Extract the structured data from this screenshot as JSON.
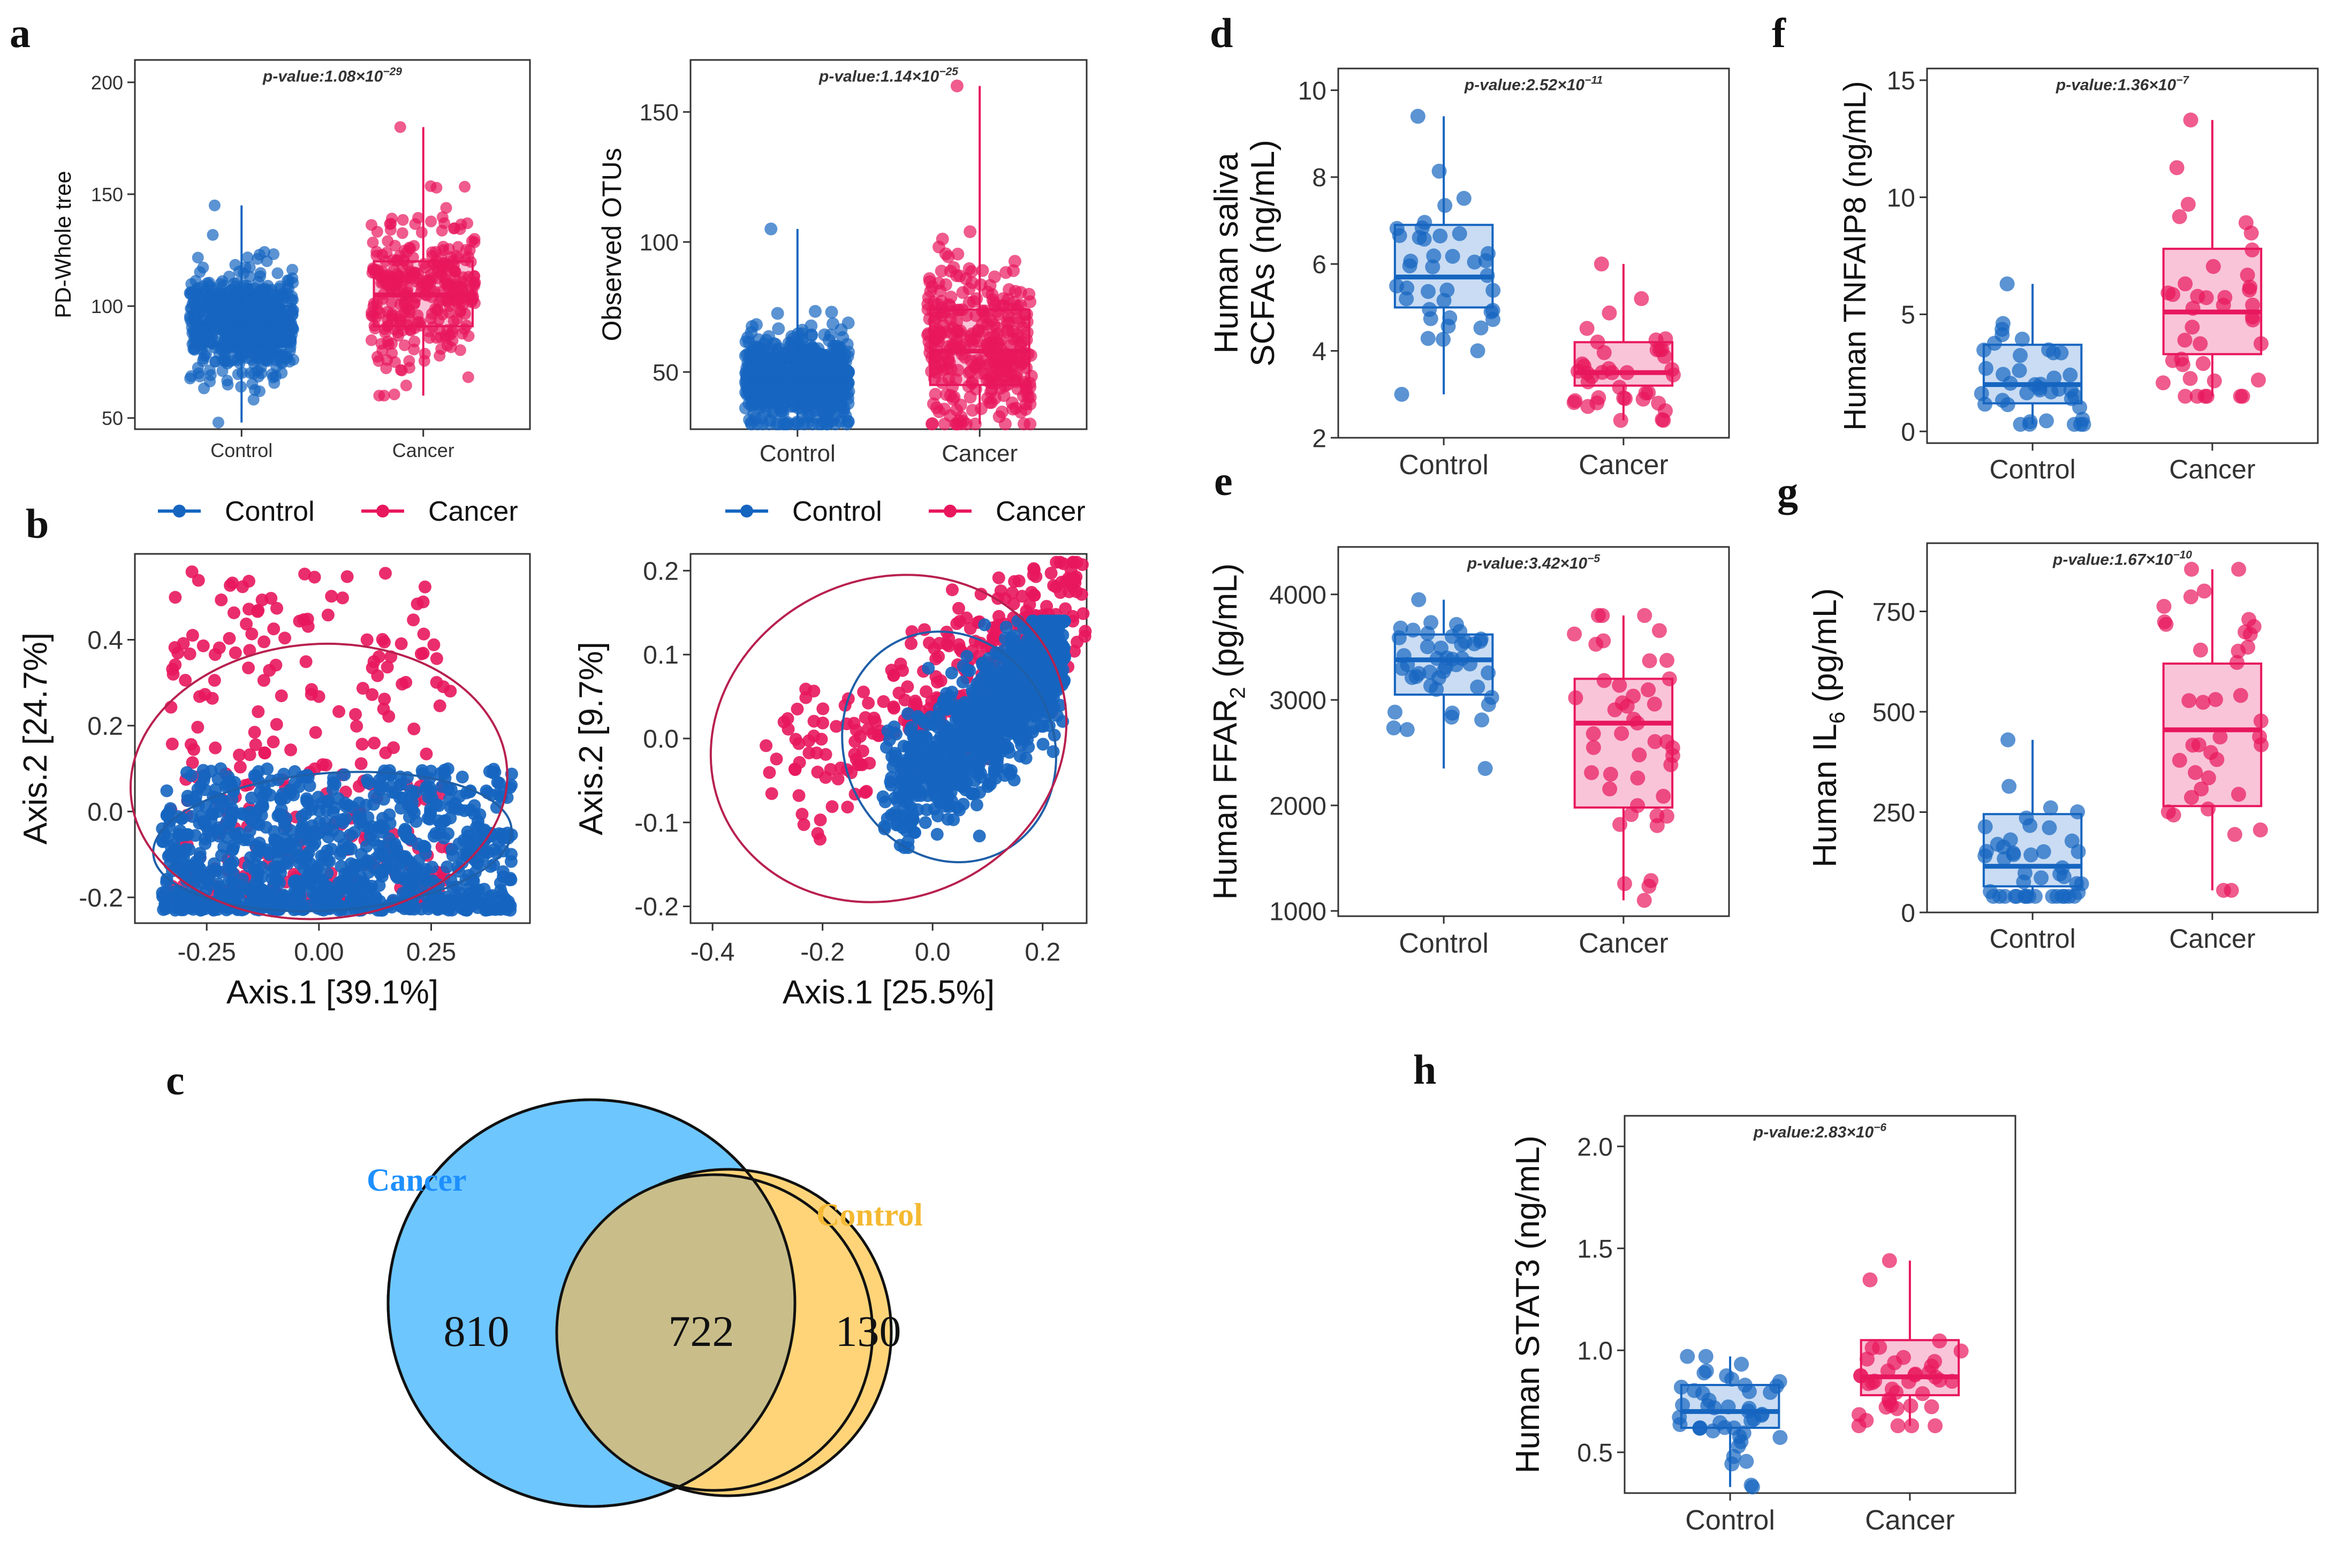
{
  "colors": {
    "control": "#1565C0",
    "cancer": "#E8175D",
    "control_fill": "#C9DCF3",
    "cancer_fill": "#F9C4D8",
    "venn_cancer": "#6EC6FF",
    "venn_control": "#FFD479",
    "venn_overlap": "#C9BE8A",
    "venn_cancer_label": "#1E90FF",
    "venn_control_label": "#F5B932"
  },
  "legend": {
    "control": "Control",
    "cancer": "Cancer"
  },
  "chart_data": [
    {
      "id": "a1",
      "panel_letter": "a",
      "type": "box",
      "ylabel": "PD-Whole tree",
      "ylim": [
        45,
        210
      ],
      "yticks": [
        50,
        100,
        150,
        200
      ],
      "categories": [
        "Control",
        "Cancer"
      ],
      "pvalue": {
        "prefix": "p-value:1.08×10",
        "exp": "−29"
      },
      "series": [
        {
          "name": "Control",
          "q1": 82,
          "median": 92,
          "q3": 100,
          "whisker_low": 48,
          "whisker_high": 145,
          "n_points": 700
        },
        {
          "name": "Cancer",
          "q1": 91,
          "median": 105,
          "q3": 120,
          "whisker_low": 60,
          "whisker_high": 180,
          "n_points": 320
        }
      ]
    },
    {
      "id": "a2",
      "type": "box",
      "ylabel": "Observed OTUs",
      "ylim": [
        28,
        170
      ],
      "yticks": [
        50,
        100,
        150
      ],
      "categories": [
        "Control",
        "Cancer"
      ],
      "pvalue": {
        "prefix": "p-value:1.14×10",
        "exp": "−25"
      },
      "series": [
        {
          "name": "Control",
          "q1": 40,
          "median": 47,
          "q3": 54,
          "whisker_low": 30,
          "whisker_high": 105,
          "n_points": 700
        },
        {
          "name": "Cancer",
          "q1": 45,
          "median": 58,
          "q3": 74,
          "whisker_low": 30,
          "whisker_high": 160,
          "n_points": 320
        }
      ]
    },
    {
      "id": "b1",
      "panel_letter": "b",
      "type": "scatter",
      "xlabel": "Axis.1   [39.1%]",
      "ylabel": "Axis.2   [24.7%]",
      "xlim": [
        -0.41,
        0.47
      ],
      "ylim": [
        -0.26,
        0.6
      ],
      "xticks": [
        -0.25,
        0.0,
        0.25
      ],
      "xtick_labels": [
        "-0.25",
        "0.00",
        "0.25"
      ],
      "yticks": [
        -0.2,
        0.0,
        0.2,
        0.4
      ],
      "ytick_labels": [
        "-0.2",
        "0.0",
        "0.2",
        "0.4"
      ],
      "series": [
        {
          "name": "Control",
          "n_points": 950,
          "x_range": [
            -0.35,
            0.43
          ],
          "y_range": [
            -0.23,
            0.1
          ],
          "ellipse": {
            "cx": 0.03,
            "cy": -0.07,
            "rx": 0.4,
            "ry": 0.16
          }
        },
        {
          "name": "Cancer",
          "n_points": 300,
          "x_range": [
            -0.33,
            0.3
          ],
          "y_range": [
            -0.22,
            0.56
          ],
          "ellipse": {
            "cx": 0.0,
            "cy": 0.07,
            "rx": 0.42,
            "ry": 0.32
          }
        }
      ]
    },
    {
      "id": "b2",
      "type": "scatter",
      "xlabel": "Axis.1   [25.5%]",
      "ylabel": "Axis.2   [9.7%]",
      "xlim": [
        -0.44,
        0.28
      ],
      "ylim": [
        -0.22,
        0.22
      ],
      "xticks": [
        -0.4,
        -0.2,
        0.0,
        0.2
      ],
      "xtick_labels": [
        "-0.4",
        "-0.2",
        "0.0",
        "0.2"
      ],
      "yticks": [
        -0.2,
        -0.1,
        0.0,
        0.1,
        0.2
      ],
      "ytick_labels": [
        "-0.2",
        "-0.1",
        "0.0",
        "0.1",
        "0.2"
      ],
      "series": [
        {
          "name": "Control",
          "n_points": 950,
          "x_range": [
            -0.15,
            0.24
          ],
          "y_range": [
            -0.13,
            0.14
          ],
          "ellipse": {
            "cx": 0.03,
            "cy": -0.01,
            "rx": 0.19,
            "ry": 0.14
          }
        },
        {
          "name": "Cancer",
          "n_points": 300,
          "x_range": [
            -0.41,
            0.28
          ],
          "y_range": [
            -0.12,
            0.21
          ],
          "ellipse": {
            "cx": -0.08,
            "cy": 0.0,
            "rx": 0.33,
            "ry": 0.19
          }
        }
      ]
    },
    {
      "id": "d",
      "panel_letter": "d",
      "type": "box",
      "ylabel": "Human saliva",
      "ylabel2": "SCFAs (ng/mL)",
      "ylim": [
        2,
        10.5
      ],
      "yticks": [
        2,
        4,
        6,
        8,
        10
      ],
      "categories": [
        "Control",
        "Cancer"
      ],
      "pvalue": {
        "prefix": "p-value:2.52×10",
        "exp": "−11"
      },
      "series": [
        {
          "name": "Control",
          "q1": 5.0,
          "median": 5.7,
          "q3": 6.9,
          "whisker_low": 3.0,
          "whisker_high": 9.4,
          "n_points": 40
        },
        {
          "name": "Cancer",
          "q1": 3.2,
          "median": 3.5,
          "q3": 4.2,
          "whisker_low": 2.4,
          "whisker_high": 6.0,
          "n_points": 40
        }
      ]
    },
    {
      "id": "f",
      "panel_letter": "f",
      "type": "box",
      "ylabel": "Human TNFAIP8 (ng/mL)",
      "ylim": [
        -0.5,
        15.5
      ],
      "yticks": [
        0,
        5,
        10,
        15
      ],
      "categories": [
        "Control",
        "Cancer"
      ],
      "pvalue": {
        "prefix": "p-value:1.36×10",
        "exp": "−7"
      },
      "series": [
        {
          "name": "Control",
          "q1": 1.2,
          "median": 2.0,
          "q3": 3.7,
          "whisker_low": 0.3,
          "whisker_high": 6.3,
          "n_points": 40
        },
        {
          "name": "Cancer",
          "q1": 3.3,
          "median": 5.1,
          "q3": 7.8,
          "whisker_low": 1.5,
          "whisker_high": 13.3,
          "n_points": 40
        }
      ]
    },
    {
      "id": "e",
      "panel_letter": "e",
      "type": "box",
      "ylabel_parts": [
        "Human FFAR",
        "2",
        " (pg/mL)"
      ],
      "ylim": [
        950,
        4450
      ],
      "yticks": [
        1000,
        2000,
        3000,
        4000
      ],
      "categories": [
        "Control",
        "Cancer"
      ],
      "pvalue": {
        "prefix": "p-value:3.42×10",
        "exp": "−5"
      },
      "series": [
        {
          "name": "Control",
          "q1": 3050,
          "median": 3380,
          "q3": 3620,
          "whisker_low": 2350,
          "whisker_high": 3950,
          "n_points": 45
        },
        {
          "name": "Cancer",
          "q1": 1980,
          "median": 2780,
          "q3": 3200,
          "whisker_low": 1100,
          "whisker_high": 3800,
          "n_points": 45
        }
      ]
    },
    {
      "id": "g",
      "panel_letter": "g",
      "type": "box",
      "ylabel_parts": [
        "Human IL",
        "6",
        " (pg/mL)"
      ],
      "ylim": [
        0,
        920
      ],
      "yticks": [
        0,
        250,
        500,
        750
      ],
      "categories": [
        "Control",
        "Cancer"
      ],
      "pvalue": {
        "prefix": "p-value:1.67×10",
        "exp": "−10"
      },
      "series": [
        {
          "name": "Control",
          "q1": 65,
          "median": 115,
          "q3": 245,
          "whisker_low": 40,
          "whisker_high": 430,
          "n_points": 45
        },
        {
          "name": "Cancer",
          "q1": 265,
          "median": 455,
          "q3": 620,
          "whisker_low": 55,
          "whisker_high": 855,
          "n_points": 40
        }
      ]
    },
    {
      "id": "h",
      "panel_letter": "h",
      "type": "box",
      "ylabel": "Human STAT3  (ng/mL)",
      "ylim": [
        0.3,
        2.15
      ],
      "yticks": [
        0.5,
        1.0,
        1.5,
        2.0
      ],
      "ytick_labels": [
        "0.5",
        "1.0",
        "1.5",
        "2.0"
      ],
      "categories": [
        "Control",
        "Cancer"
      ],
      "pvalue": {
        "prefix": "p-value:2.83×10",
        "exp": "−6"
      },
      "series": [
        {
          "name": "Control",
          "q1": 0.62,
          "median": 0.7,
          "q3": 0.83,
          "whisker_low": 0.33,
          "whisker_high": 0.97,
          "n_points": 45
        },
        {
          "name": "Cancer",
          "q1": 0.78,
          "median": 0.87,
          "q3": 1.05,
          "whisker_low": 0.63,
          "whisker_high": 1.44,
          "n_points": 40
        }
      ]
    },
    {
      "id": "c",
      "panel_letter": "c",
      "type": "venn",
      "sets": [
        {
          "name": "Cancer",
          "only": 810
        },
        {
          "name": "Control",
          "only": 130
        }
      ],
      "intersection": 722
    }
  ]
}
